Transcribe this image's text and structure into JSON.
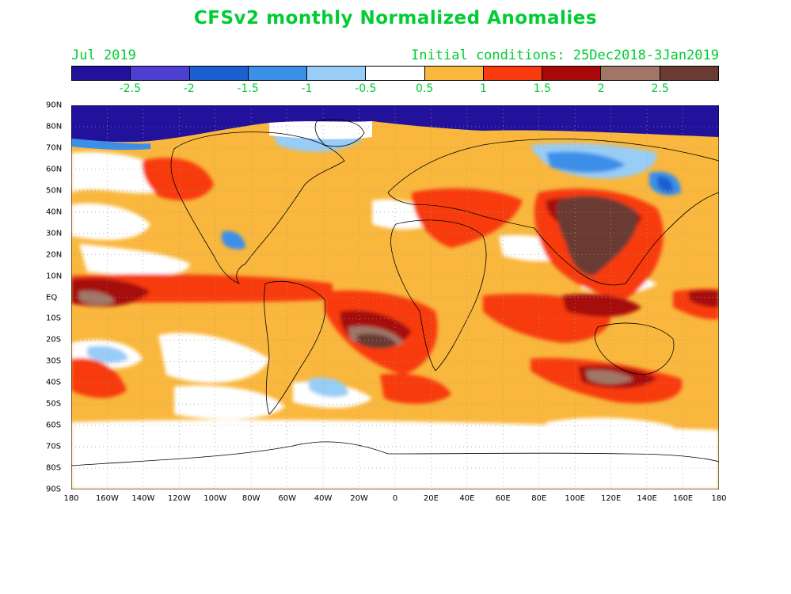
{
  "title": "CFSv2 monthly Normalized Anomalies",
  "valid_month": "Jul 2019",
  "initial_conditions": "Initial conditions: 25Dec2018-3Jan2019",
  "colorbar": {
    "colors": [
      "#22119a",
      "#4d3fd0",
      "#1c5fd1",
      "#3b8fe8",
      "#98cdf7",
      "#ffffff",
      "#f9b73d",
      "#f83a0e",
      "#a6090a",
      "#a07767",
      "#6a3b30"
    ],
    "labels": [
      "-2.5",
      "-2",
      "-1.5",
      "-1",
      "-0.5",
      "0.5",
      "1",
      "1.5",
      "2",
      "2.5"
    ]
  },
  "lat_labels": [
    "90N",
    "80N",
    "70N",
    "60N",
    "50N",
    "40N",
    "30N",
    "20N",
    "10N",
    "EQ",
    "10S",
    "20S",
    "30S",
    "40S",
    "50S",
    "60S",
    "70S",
    "80S",
    "90S"
  ],
  "lon_labels": [
    "180",
    "160W",
    "140W",
    "120W",
    "100W",
    "80W",
    "60W",
    "40W",
    "20W",
    "0",
    "20E",
    "40E",
    "60E",
    "80E",
    "100E",
    "120E",
    "140E",
    "160E",
    "180"
  ]
}
